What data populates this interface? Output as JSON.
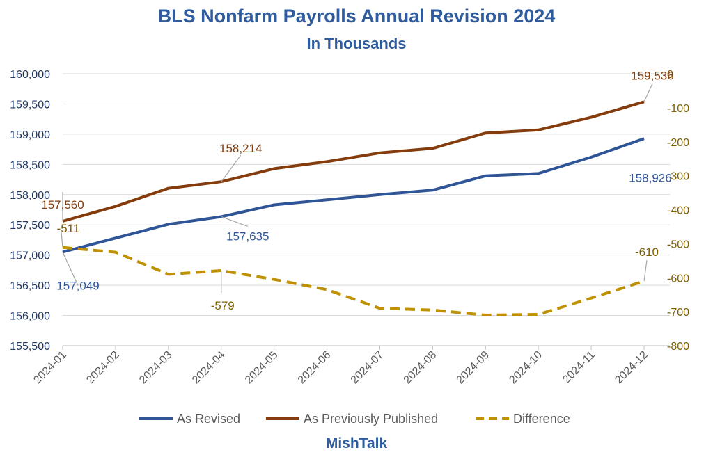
{
  "chart_data": {
    "type": "line",
    "title": "BLS Nonfarm Payrolls Annual Revision 2024",
    "subtitle": "In Thousands",
    "categories": [
      "2024-01",
      "2024-02",
      "2024-03",
      "2024-04",
      "2024-05",
      "2024-06",
      "2024-07",
      "2024-08",
      "2024-09",
      "2024-10",
      "2024-11",
      "2024-12"
    ],
    "y_left": {
      "min": 155500,
      "max": 160000,
      "step": 500,
      "tick_labels": [
        "155,500",
        "156,000",
        "156,500",
        "157,000",
        "157,500",
        "158,000",
        "158,500",
        "159,000",
        "159,500",
        "160,000"
      ]
    },
    "y_right": {
      "min": -800,
      "max": 0,
      "step": 100,
      "tick_labels": [
        "-800",
        "-700",
        "-600",
        "-500",
        "-400",
        "-300",
        "-200",
        "-100",
        "0"
      ]
    },
    "grid": true,
    "legend_position": "bottom",
    "series": [
      {
        "name": "As Revised",
        "axis": "left",
        "color": "#2F5597",
        "dashed": false,
        "values": [
          157049,
          157280,
          157510,
          157635,
          157830,
          157915,
          158000,
          158075,
          158310,
          158350,
          158620,
          158926
        ]
      },
      {
        "name": "As Previously Published",
        "axis": "left",
        "color": "#843C0C",
        "dashed": false,
        "values": [
          157560,
          157805,
          158105,
          158214,
          158430,
          158545,
          158690,
          158765,
          159020,
          159070,
          159280,
          159536
        ]
      },
      {
        "name": "Difference",
        "axis": "right",
        "color": "#BF9000",
        "dashed": true,
        "values": [
          -511,
          -525,
          -590,
          -579,
          -605,
          -635,
          -690,
          -695,
          -710,
          -708,
          -660,
          -610
        ]
      }
    ],
    "annotations": [
      {
        "series": 1,
        "index": 0,
        "text": "157,560",
        "color": "#843C0C"
      },
      {
        "series": 1,
        "index": 3,
        "text": "158,214",
        "color": "#843C0C"
      },
      {
        "series": 1,
        "index": 11,
        "text": "159,536",
        "color": "#843C0C"
      },
      {
        "series": 0,
        "index": 0,
        "text": "157,049",
        "color": "#2F5597"
      },
      {
        "series": 0,
        "index": 3,
        "text": "157,635",
        "color": "#2F5597"
      },
      {
        "series": 0,
        "index": 11,
        "text": "158,926",
        "color": "#2F5597"
      },
      {
        "series": 2,
        "index": 0,
        "text": "-511",
        "color": "#7F6000"
      },
      {
        "series": 2,
        "index": 3,
        "text": "-579",
        "color": "#7F6000"
      },
      {
        "series": 2,
        "index": 11,
        "text": "-610",
        "color": "#7F6000"
      }
    ],
    "colors": {
      "title": "#2E5C9E",
      "grid": "#D9D9D9",
      "axis_text_left": "#1F3864",
      "axis_text_right": "#7F6000",
      "x_text": "#595959"
    }
  },
  "footer": {
    "brand": "MishTalk"
  }
}
